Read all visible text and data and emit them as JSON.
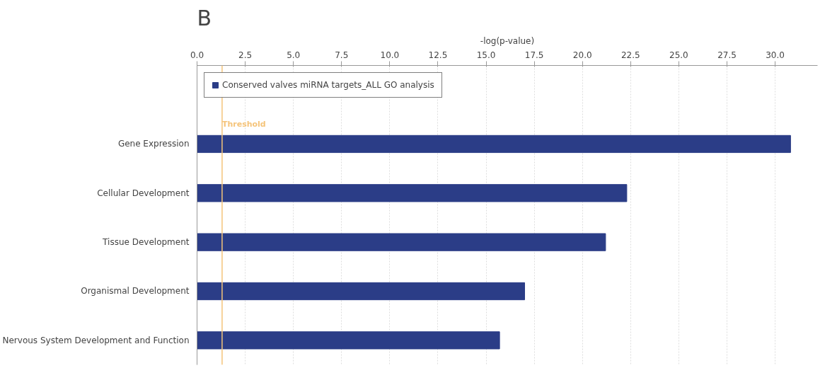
{
  "chart_data": {
    "type": "bar",
    "orientation": "horizontal",
    "xlabel": "-log(p-value)",
    "categories": [
      "Gene Expression",
      "Cellular Development",
      "Tissue Development",
      "Organismal Development",
      "Nervous System Development and Function"
    ],
    "series": [
      {
        "name": "Conserved valves miRNA targets_ALL GO analysis",
        "color": "#2b3d87",
        "values": [
          30.8,
          22.3,
          21.2,
          17.0,
          15.7
        ]
      }
    ],
    "xlim": [
      0,
      32.2
    ],
    "xticks": [
      {
        "value": 0,
        "label": "0.0"
      },
      {
        "value": 2.5,
        "label": "2.5"
      },
      {
        "value": 5,
        "label": "5.0"
      },
      {
        "value": 7.5,
        "label": "7.5"
      },
      {
        "value": 10,
        "label": "10.0"
      },
      {
        "value": 12.5,
        "label": "12.5"
      },
      {
        "value": 15,
        "label": "15.0"
      },
      {
        "value": 17.5,
        "label": "17.5"
      },
      {
        "value": 20,
        "label": "20.0"
      },
      {
        "value": 22.5,
        "label": "22.5"
      },
      {
        "value": 25,
        "label": "25.0"
      },
      {
        "value": 27.5,
        "label": "27.5"
      },
      {
        "value": 30,
        "label": "30.0"
      }
    ],
    "ref_lines": [
      {
        "axis": "x",
        "value": 1.3,
        "label": "Threshold",
        "color": "#f5c47a"
      }
    ],
    "annotations": [
      "B"
    ],
    "grid": "x",
    "legend": "top left"
  }
}
